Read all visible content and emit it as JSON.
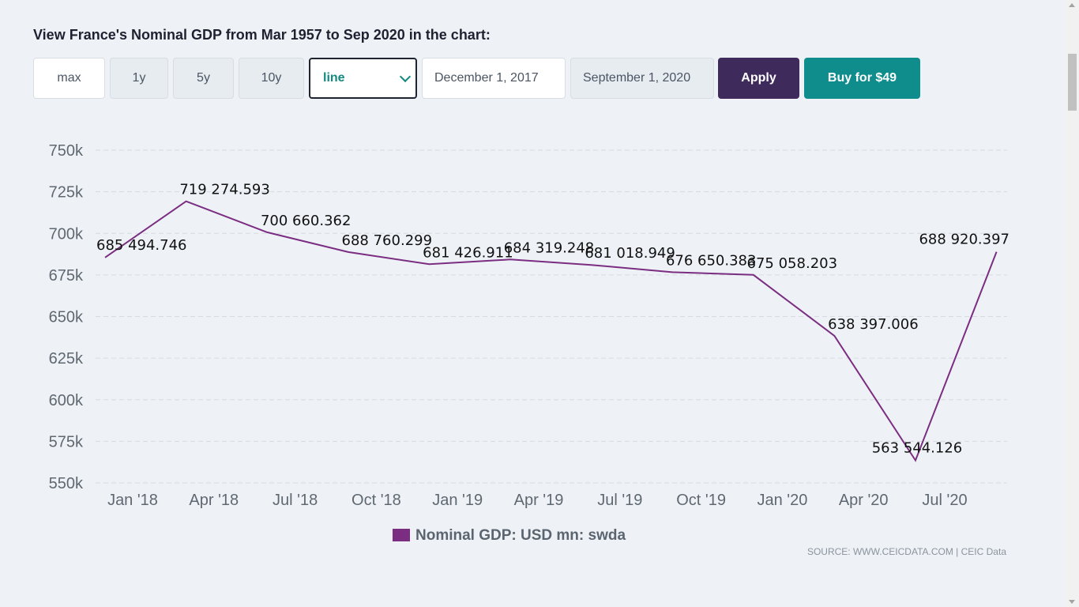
{
  "heading": "View France's Nominal GDP from Mar 1957 to Sep 2020 in the chart:",
  "controls": {
    "range_buttons": [
      "max",
      "1y",
      "5y",
      "10y"
    ],
    "chart_type_selected": "line",
    "start_date": "December 1, 2017",
    "end_date": "September 1, 2020",
    "apply_label": "Apply",
    "buy_label": "Buy for $49"
  },
  "colors": {
    "series": "#7b2d82",
    "apply": "#3f2a5c",
    "buy": "#0f8c8c",
    "background": "#eef2f6"
  },
  "source_text": "SOURCE: WWW.CEICDATA.COM | CEIC Data",
  "chart_data": {
    "type": "line",
    "title": "",
    "xlabel": "",
    "ylabel": "",
    "x": [
      "2017-12",
      "2018-03",
      "2018-06",
      "2018-09",
      "2018-12",
      "2019-03",
      "2019-06",
      "2019-09",
      "2019-12",
      "2020-03",
      "2020-06",
      "2020-09"
    ],
    "x_ticks": [
      "Jan '18",
      "Apr '18",
      "Jul '18",
      "Oct '18",
      "Jan '19",
      "Apr '19",
      "Jul '19",
      "Oct '19",
      "Jan '20",
      "Apr '20",
      "Jul '20"
    ],
    "y_ticks": [
      "550k",
      "575k",
      "600k",
      "625k",
      "650k",
      "675k",
      "700k",
      "725k",
      "750k"
    ],
    "ylim": [
      550000,
      750000
    ],
    "grid": true,
    "legend_position": "bottom-center",
    "series": [
      {
        "name": "Nominal GDP: USD mn: swda",
        "values": [
          685494.746,
          719274.593,
          700660.362,
          688760.299,
          681426.911,
          684319.248,
          681018.949,
          676650.383,
          675058.203,
          638397.006,
          563544.126,
          688920.397
        ],
        "labels": [
          "685 494.746",
          "719 274.593",
          "700 660.362",
          "688 760.299",
          "681 426.911",
          "684 319.248",
          "681 018.949",
          "676 650.383",
          "675 058.203",
          "638 397.006",
          "563 544.126",
          "688 920.397"
        ]
      }
    ]
  }
}
